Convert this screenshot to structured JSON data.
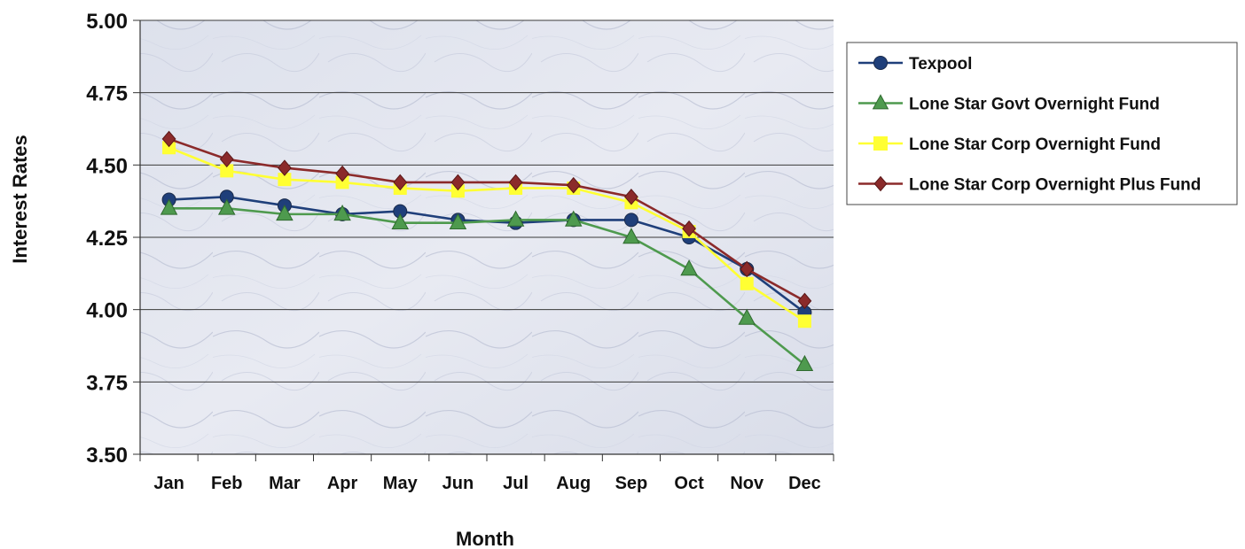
{
  "chart_data": {
    "type": "line",
    "title": "",
    "xlabel": "Month",
    "ylabel": "Interest Rates",
    "categories": [
      "Jan",
      "Feb",
      "Mar",
      "Apr",
      "May",
      "Jun",
      "Jul",
      "Aug",
      "Sep",
      "Oct",
      "Nov",
      "Dec"
    ],
    "ylim": [
      3.5,
      5.0
    ],
    "yticks": [
      "3.50",
      "3.75",
      "4.00",
      "4.25",
      "4.50",
      "4.75",
      "5.00"
    ],
    "grid": true,
    "legend_position": "right",
    "series": [
      {
        "name": "Texpool",
        "color": "#1f3f7a",
        "marker": "circle",
        "values": [
          4.38,
          4.39,
          4.36,
          4.33,
          4.34,
          4.31,
          4.3,
          4.31,
          4.31,
          4.25,
          4.14,
          3.99
        ]
      },
      {
        "name": "Lone Star Govt Overnight Fund",
        "color": "#4e9a4e",
        "marker": "triangle",
        "values": [
          4.35,
          4.35,
          4.33,
          4.33,
          4.3,
          4.3,
          4.31,
          4.31,
          4.25,
          4.14,
          3.97,
          3.81
        ]
      },
      {
        "name": "Lone Star Corp Overnight Fund",
        "color": "#ffff33",
        "marker": "square",
        "values": [
          4.56,
          4.48,
          4.45,
          4.44,
          4.42,
          4.41,
          4.42,
          4.42,
          4.37,
          4.27,
          4.09,
          3.96
        ]
      },
      {
        "name": "Lone Star Corp Overnight Plus Fund",
        "color": "#8b2a2a",
        "marker": "diamond",
        "values": [
          4.59,
          4.52,
          4.49,
          4.47,
          4.44,
          4.44,
          4.44,
          4.43,
          4.39,
          4.28,
          4.14,
          4.03
        ]
      }
    ]
  }
}
